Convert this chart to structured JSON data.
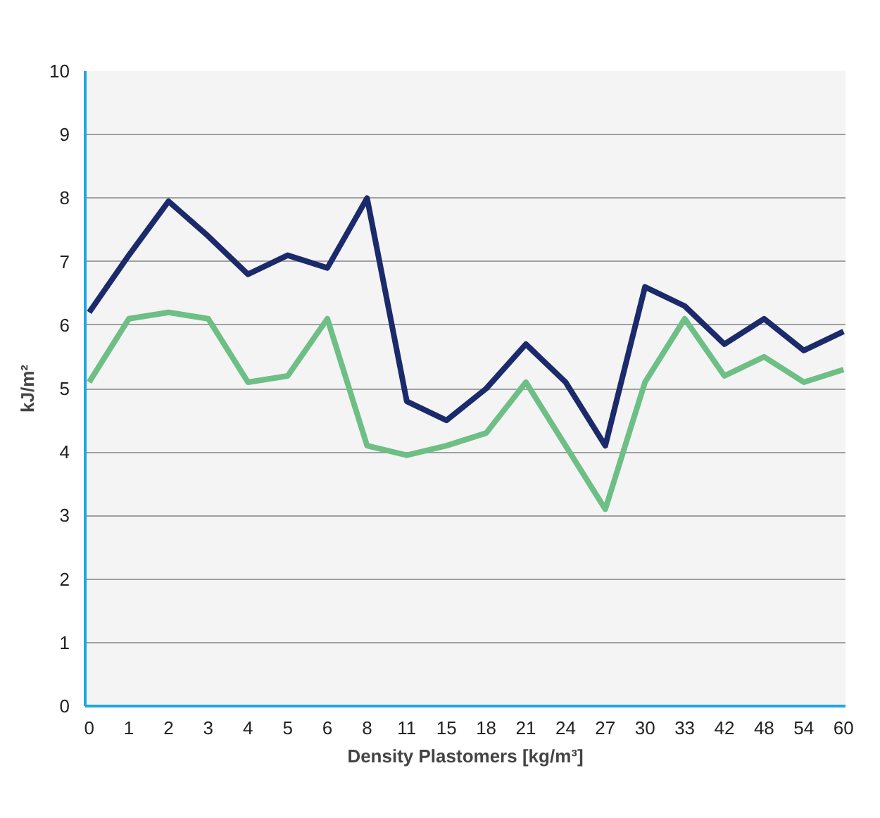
{
  "chart_data": {
    "type": "line",
    "xlabel": "Density Plastomers [kg/m³]",
    "ylabel": "kJ/m²",
    "categories": [
      "0",
      "1",
      "2",
      "3",
      "4",
      "5",
      "6",
      "8",
      "11",
      "15",
      "18",
      "21",
      "24",
      "27",
      "30",
      "33",
      "42",
      "48",
      "54",
      "60"
    ],
    "series": [
      {
        "color": "#1b2a6b",
        "values": [
          6.2,
          7.1,
          7.95,
          7.4,
          6.8,
          7.1,
          6.9,
          8.0,
          4.8,
          4.5,
          5.0,
          5.7,
          5.1,
          4.1,
          6.6,
          6.3,
          5.7,
          6.1,
          5.6,
          5.9
        ]
      },
      {
        "color": "#6dbf85",
        "values": [
          5.1,
          6.1,
          6.2,
          6.1,
          5.1,
          5.2,
          6.1,
          4.1,
          3.95,
          4.1,
          4.3,
          5.1,
          4.1,
          3.1,
          5.1,
          6.1,
          5.2,
          5.5,
          5.1,
          5.3
        ]
      }
    ],
    "ylim": [
      0,
      10
    ],
    "yticks": [
      0,
      1,
      2,
      3,
      4,
      5,
      6,
      7,
      8,
      9,
      10
    ],
    "grid": "y",
    "marker": "none",
    "line_style": "solid"
  }
}
